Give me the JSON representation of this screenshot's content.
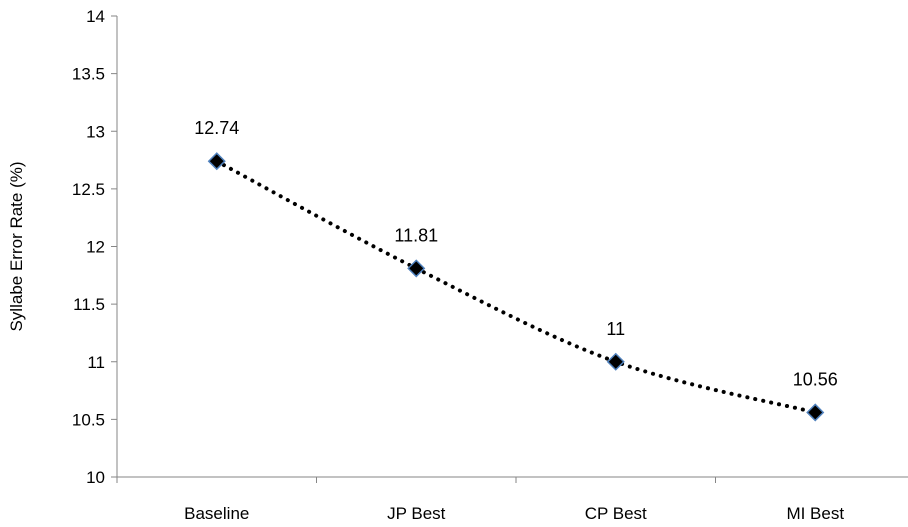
{
  "chart_data": {
    "type": "line",
    "categories": [
      "Baseline",
      "JP Best",
      "CP Best",
      "MI Best"
    ],
    "series": [
      {
        "values": [
          12.74,
          11.81,
          11,
          10.56
        ],
        "data_labels": [
          "12.74",
          "11.81",
          "11",
          "10.56"
        ],
        "line_style": "dotted",
        "marker": "diamond",
        "marker_fill": "#000000",
        "marker_edge": "#4f81bd",
        "line_color": "#000000"
      }
    ],
    "title": "",
    "xlabel": "",
    "ylabel": "Syllabe Error Rate (%)",
    "ylim": [
      10,
      14
    ],
    "yticks": [
      10,
      10.5,
      11,
      11.5,
      12,
      12.5,
      13,
      13.5,
      14
    ],
    "ytick_labels": [
      "10",
      "10.5",
      "11",
      "11.5",
      "12",
      "12.5",
      "13",
      "13.5",
      "14"
    ],
    "grid": false,
    "legend": "none"
  }
}
